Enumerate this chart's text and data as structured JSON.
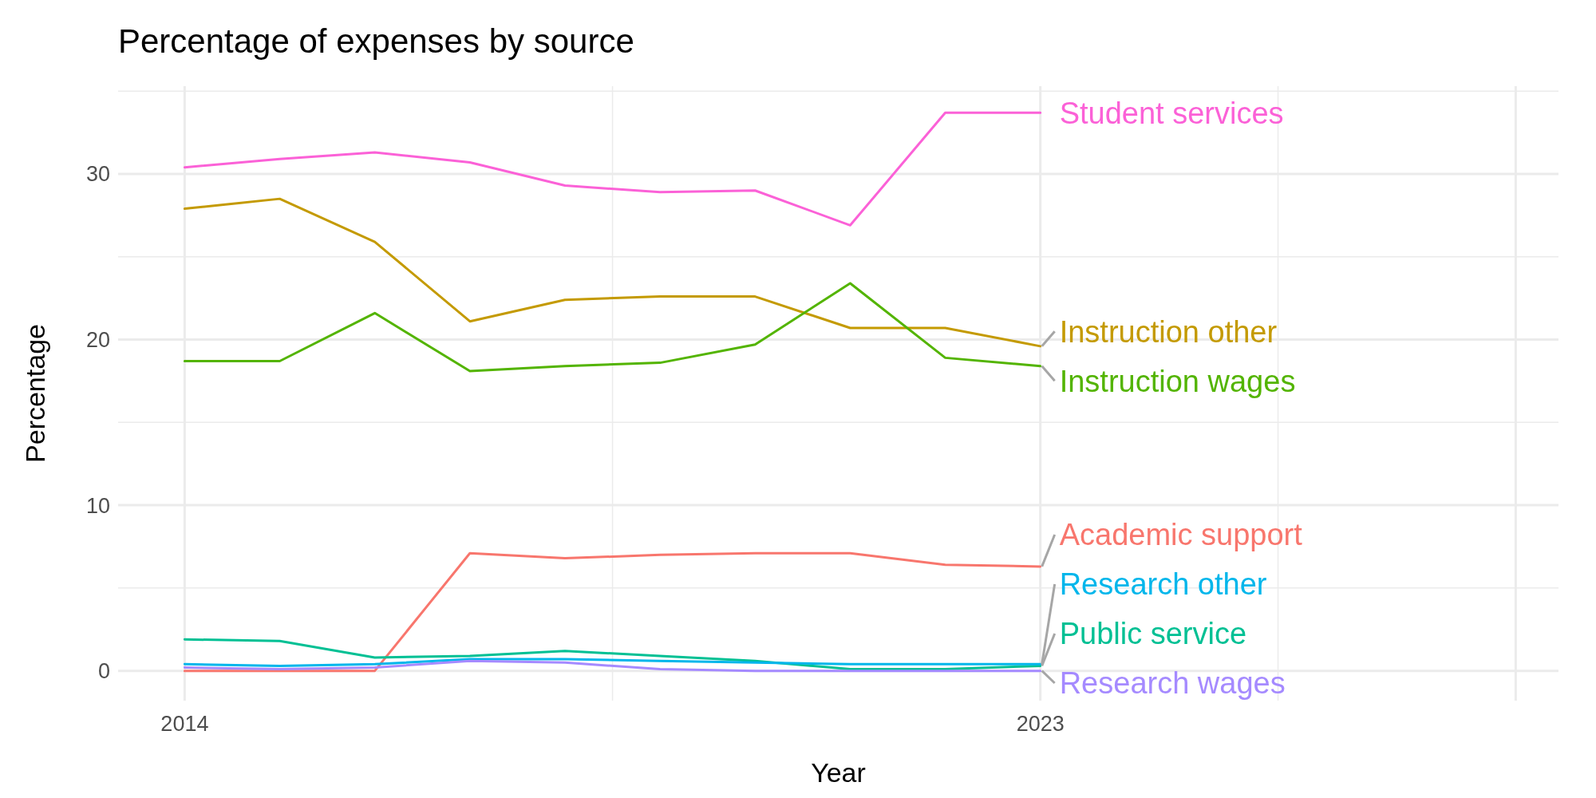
{
  "chart_data": {
    "type": "line",
    "title": "Percentage of expenses by source",
    "xlabel": "Year",
    "ylabel": "Percentage",
    "x": [
      2014,
      2015,
      2016,
      2017,
      2018,
      2019,
      2020,
      2021,
      2022,
      2023
    ],
    "xlim": [
      2013.3,
      2028.45
    ],
    "xticks": [
      2014,
      2023,
      {
        "value": 2028,
        "label": null
      }
    ],
    "ylim": [
      -1.8,
      35.3
    ],
    "yticks": [
      0,
      10,
      20,
      30
    ],
    "grid": true,
    "legend": false,
    "line_style": "solid",
    "marker": "none",
    "series": [
      {
        "name": "Academic support",
        "color": "#F8766D",
        "values": [
          0,
          0,
          0,
          7.1,
          6.8,
          7.0,
          7.1,
          7.1,
          6.4,
          6.3
        ]
      },
      {
        "name": "Instruction other",
        "color": "#C49A00",
        "values": [
          27.9,
          28.5,
          25.9,
          21.1,
          22.4,
          22.6,
          22.6,
          20.7,
          20.7,
          19.6
        ]
      },
      {
        "name": "Instruction wages",
        "color": "#53B400",
        "values": [
          18.7,
          18.7,
          21.6,
          18.1,
          18.4,
          18.6,
          19.7,
          23.4,
          18.9,
          18.4
        ]
      },
      {
        "name": "Public service",
        "color": "#00C094",
        "values": [
          1.9,
          1.8,
          0.8,
          0.9,
          1.2,
          0.9,
          0.6,
          0.1,
          0.1,
          0.3
        ]
      },
      {
        "name": "Research other",
        "color": "#00B6EB",
        "values": [
          0.4,
          0.3,
          0.4,
          0.7,
          0.7,
          0.6,
          0.5,
          0.4,
          0.4,
          0.4
        ]
      },
      {
        "name": "Research wages",
        "color": "#A58AFF",
        "values": [
          0.2,
          0.1,
          0.2,
          0.6,
          0.5,
          0.1,
          0,
          0,
          0,
          0
        ]
      },
      {
        "name": "Student services",
        "color": "#FB61D7",
        "values": [
          30.4,
          30.9,
          31.3,
          30.7,
          29.3,
          28.9,
          29.0,
          26.9,
          33.7,
          33.7
        ]
      }
    ]
  }
}
